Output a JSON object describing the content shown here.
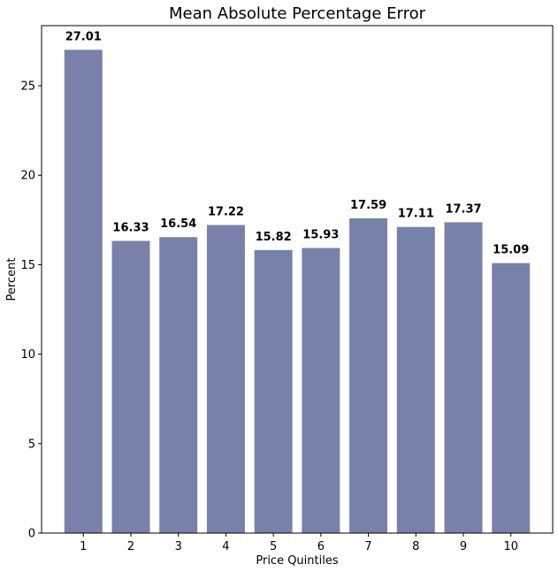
{
  "chart_data": {
    "type": "bar",
    "title": "Mean Absolute Percentage Error",
    "xlabel": "Price Quintiles",
    "ylabel": "Percent",
    "categories": [
      "1",
      "2",
      "3",
      "4",
      "5",
      "6",
      "7",
      "8",
      "9",
      "10"
    ],
    "values": [
      27.01,
      16.33,
      16.54,
      17.22,
      15.82,
      15.93,
      17.59,
      17.11,
      17.37,
      15.09
    ],
    "data_labels": [
      "27.01",
      "16.33",
      "16.54",
      "17.22",
      "15.82",
      "15.93",
      "17.59",
      "17.11",
      "17.37",
      "15.09"
    ],
    "ylim": [
      0,
      28.36
    ],
    "yticks": [
      0,
      5,
      10,
      15,
      20,
      25
    ],
    "grid": false,
    "legend": "none",
    "bar_color": "#7881a9"
  }
}
